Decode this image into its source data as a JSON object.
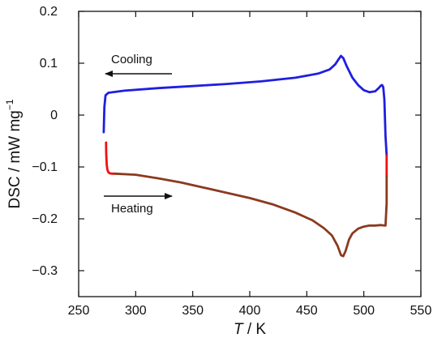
{
  "chart_data": {
    "type": "line",
    "xlabel": {
      "italic": "T",
      "rest": " / K"
    },
    "ylabel": {
      "main": "DSC / mW mg",
      "sup": "−1"
    },
    "xlim": [
      250,
      550
    ],
    "ylim": [
      -0.35,
      0.2
    ],
    "x_ticks": [
      250,
      300,
      350,
      400,
      450,
      500,
      550
    ],
    "x_tick_labels": [
      "250",
      "300",
      "350",
      "400",
      "450",
      "500",
      "550"
    ],
    "y_ticks": [
      -0.3,
      -0.2,
      -0.1,
      0,
      0.1,
      0.2
    ],
    "y_tick_labels": [
      "−0.3",
      "−0.2",
      "−0.1",
      "0",
      "0.1",
      "0.2"
    ],
    "grid": false,
    "legend": "none",
    "annotations": [
      {
        "text": "Cooling",
        "arrow": "left"
      },
      {
        "text": "Heating",
        "arrow": "right"
      }
    ],
    "series": [
      {
        "color": "#1f1fe0",
        "x": [
          272,
          272.5,
          273.5,
          276,
          290,
          320,
          350,
          380,
          410,
          440,
          460,
          470,
          475,
          478,
          480,
          482,
          485,
          490,
          495,
          500,
          505,
          510,
          513,
          515,
          516,
          517,
          518,
          519,
          520
        ],
        "y": [
          -0.033,
          0.015,
          0.038,
          0.043,
          0.047,
          0.052,
          0.056,
          0.06,
          0.065,
          0.072,
          0.08,
          0.088,
          0.098,
          0.108,
          0.114,
          0.11,
          0.094,
          0.072,
          0.058,
          0.048,
          0.044,
          0.046,
          0.052,
          0.057,
          0.058,
          0.054,
          0.03,
          -0.04,
          -0.078
        ]
      },
      {
        "color": "#ee1111",
        "x": [
          274,
          274.2,
          274.6,
          275.2,
          276,
          277,
          279,
          282
        ],
        "y": [
          -0.053,
          -0.075,
          -0.095,
          -0.105,
          -0.11,
          -0.112,
          -0.113,
          -0.113
        ]
      },
      {
        "color": "#8b3a1f",
        "x": [
          282,
          300,
          320,
          340,
          360,
          380,
          400,
          420,
          440,
          455,
          465,
          472,
          477,
          480,
          482,
          484,
          487,
          490,
          495,
          500,
          505,
          510,
          515,
          518
        ],
        "y": [
          -0.113,
          -0.115,
          -0.122,
          -0.13,
          -0.14,
          -0.15,
          -0.16,
          -0.172,
          -0.188,
          -0.203,
          -0.218,
          -0.232,
          -0.252,
          -0.27,
          -0.272,
          -0.262,
          -0.24,
          -0.228,
          -0.219,
          -0.215,
          -0.213,
          -0.213,
          -0.212,
          -0.213
        ]
      },
      {
        "color": "#ee1111",
        "x": [
          520,
          520,
          520
        ],
        "y": [
          -0.078,
          -0.098,
          -0.118
        ]
      },
      {
        "color": "#8b3a1f",
        "x": [
          520,
          520,
          519
        ],
        "y": [
          -0.118,
          -0.17,
          -0.213
        ]
      }
    ]
  }
}
